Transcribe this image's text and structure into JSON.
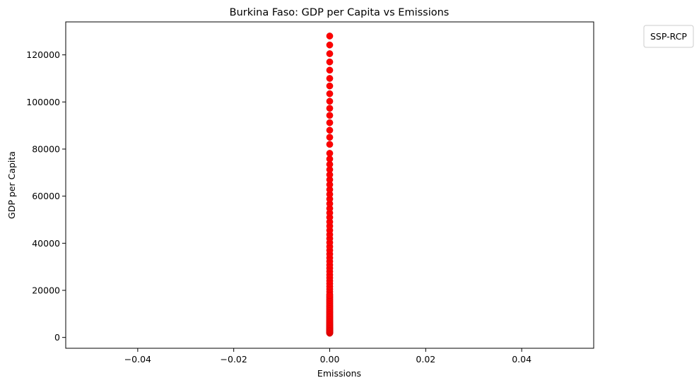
{
  "chart_data": {
    "type": "scatter",
    "title": "Burkina Faso: GDP per Capita vs Emissions",
    "xlabel": "Emissions",
    "ylabel": "GDP per Capita",
    "xlim": [
      -0.055,
      0.055
    ],
    "ylim": [
      -4600,
      134000
    ],
    "xticks": [
      -0.04,
      -0.02,
      0.0,
      0.02,
      0.04
    ],
    "xtick_labels": [
      "−0.04",
      "−0.02",
      "0.00",
      "0.02",
      "0.04"
    ],
    "yticks": [
      0,
      20000,
      40000,
      60000,
      80000,
      100000,
      120000
    ],
    "ytick_labels": [
      "0",
      "20000",
      "40000",
      "60000",
      "80000",
      "100000",
      "120000"
    ],
    "grid": false,
    "legend": {
      "title": "SSP-RCP",
      "placement": "outside-top-right"
    },
    "marker_color": "#ff0000",
    "series": [
      {
        "x": [
          0,
          0,
          0,
          0,
          0,
          0,
          0,
          0,
          0,
          0,
          0,
          0,
          0,
          0,
          0,
          0,
          0,
          0,
          0,
          0,
          0,
          0,
          0,
          0,
          0,
          0,
          0,
          0,
          0,
          0,
          0,
          0,
          0,
          0,
          0,
          0,
          0,
          0,
          0,
          0,
          0,
          0,
          0,
          0,
          0,
          0,
          0,
          0,
          0,
          0,
          0,
          0,
          0,
          0,
          0,
          0,
          0,
          0,
          0,
          0,
          0,
          0,
          0,
          0,
          0,
          0,
          0,
          0,
          0,
          0,
          0,
          0,
          0,
          0,
          0,
          0,
          0,
          0,
          0,
          0,
          0,
          0,
          0,
          0,
          0,
          0,
          0,
          0,
          0,
          0,
          0,
          0,
          0,
          0,
          0,
          0,
          0,
          0,
          0,
          0,
          0,
          0,
          0,
          0,
          0,
          0,
          0,
          0,
          0,
          0,
          0,
          0,
          0
        ],
        "y": [
          1800,
          2000,
          2200,
          2400,
          2600,
          2800,
          3000,
          3300,
          3600,
          3900,
          4200,
          4600,
          5000,
          5400,
          5800,
          6300,
          6800,
          7300,
          7900,
          8500,
          9100,
          9800,
          10500,
          11200,
          12000,
          12800,
          13600,
          14500,
          15400,
          16300,
          17300,
          18300,
          19400,
          20500,
          21600,
          22800,
          24000,
          25300,
          26600,
          28000,
          29400,
          30800,
          32300,
          33800,
          35400,
          37000,
          38600,
          40300,
          42000,
          43700,
          45500,
          47300,
          49100,
          51000,
          52900,
          54800,
          56800,
          58800,
          60800,
          62800,
          64900,
          67000,
          69100,
          71300,
          73500,
          75800,
          78200,
          82000,
          85000,
          88000,
          91200,
          94300,
          97300,
          100300,
          103500,
          106800,
          110000,
          113500,
          117000,
          120500,
          124200,
          128000,
          1900,
          2100,
          2300,
          2500,
          2700,
          2900,
          3100,
          3450,
          3750,
          4050,
          4400,
          4800,
          5200,
          5600,
          6050,
          6550,
          7050,
          7600,
          8200,
          8800,
          9450,
          10150,
          10850,
          11600,
          12400,
          13200,
          14050,
          14950,
          15850,
          16800,
          17800
        ]
      }
    ]
  }
}
